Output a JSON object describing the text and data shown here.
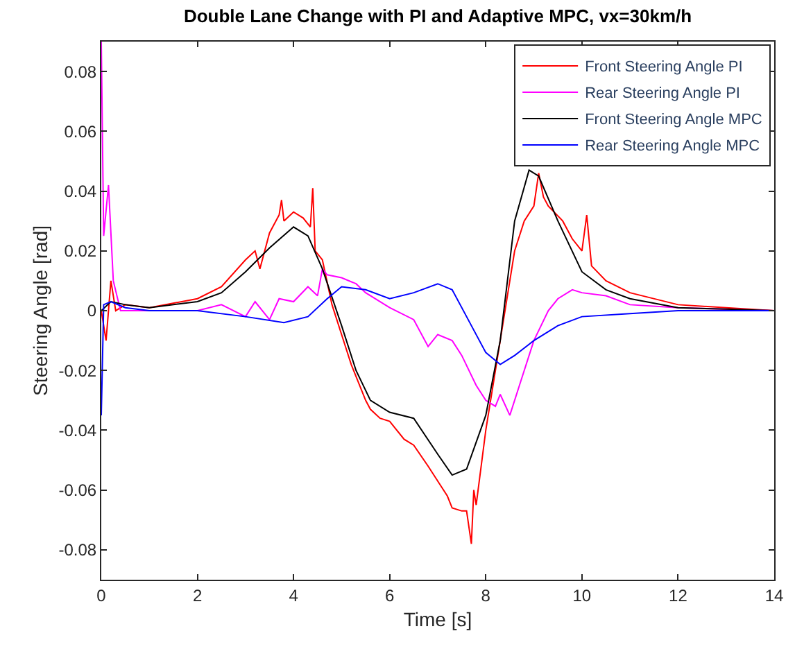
{
  "chart_data": {
    "type": "line",
    "title": "Double Lane Change with PI and Adaptive MPC, vx=30km/h",
    "xlabel": "Time [s]",
    "ylabel": "Steering Angle [rad]",
    "xlim": [
      0,
      14
    ],
    "ylim": [
      -0.09,
      0.09
    ],
    "xticks": [
      0,
      2,
      4,
      6,
      8,
      10,
      12,
      14
    ],
    "yticks": [
      -0.08,
      -0.06,
      -0.04,
      -0.02,
      0,
      0.02,
      0.04,
      0.06,
      0.08
    ],
    "grid": false,
    "legend": "top right",
    "line_style": "solid",
    "marker": "none",
    "series": [
      {
        "name": "Front Steering Angle PI",
        "color": "#ff0000",
        "x": [
          0,
          0.1,
          0.2,
          0.3,
          0.5,
          1,
          2,
          2.5,
          3,
          3.2,
          3.3,
          3.5,
          3.7,
          3.75,
          3.8,
          4,
          4.2,
          4.35,
          4.4,
          4.45,
          4.6,
          4.8,
          5,
          5.2,
          5.3,
          5.5,
          5.6,
          5.8,
          6,
          6.3,
          6.5,
          6.8,
          7,
          7.2,
          7.3,
          7.5,
          7.6,
          7.7,
          7.75,
          7.8,
          8,
          8.2,
          8.3,
          8.5,
          8.6,
          8.8,
          9,
          9.1,
          9.2,
          9.3,
          9.6,
          9.8,
          10,
          10.1,
          10.2,
          10.5,
          11,
          12,
          13,
          14
        ],
        "values": [
          0,
          -0.01,
          0.01,
          0,
          0.002,
          0.001,
          0.004,
          0.008,
          0.017,
          0.02,
          0.014,
          0.026,
          0.032,
          0.037,
          0.03,
          0.033,
          0.031,
          0.028,
          0.041,
          0.02,
          0.017,
          0.002,
          -0.008,
          -0.018,
          -0.022,
          -0.03,
          -0.033,
          -0.036,
          -0.037,
          -0.043,
          -0.045,
          -0.052,
          -0.057,
          -0.062,
          -0.066,
          -0.067,
          -0.067,
          -0.078,
          -0.06,
          -0.065,
          -0.04,
          -0.02,
          -0.01,
          0.01,
          0.02,
          0.03,
          0.035,
          0.046,
          0.038,
          0.035,
          0.03,
          0.024,
          0.02,
          0.032,
          0.015,
          0.01,
          0.006,
          0.002,
          0.001,
          0
        ]
      },
      {
        "name": "Rear Steering Angle PI",
        "color": "#ff00ff",
        "x": [
          0,
          0.05,
          0.15,
          0.25,
          0.4,
          1,
          2,
          2.5,
          3,
          3.2,
          3.5,
          3.7,
          4,
          4.3,
          4.5,
          4.6,
          4.7,
          5,
          5.3,
          5.5,
          6,
          6.5,
          6.8,
          7,
          7.3,
          7.5,
          7.8,
          8,
          8.2,
          8.3,
          8.5,
          8.7,
          9,
          9.3,
          9.5,
          9.8,
          10,
          10.5,
          11,
          12,
          14
        ],
        "values": [
          0.09,
          0.025,
          0.042,
          0.01,
          0,
          0,
          0,
          0.002,
          -0.002,
          0.003,
          -0.003,
          0.004,
          0.003,
          0.008,
          0.005,
          0.014,
          0.012,
          0.011,
          0.009,
          0.006,
          0.001,
          -0.003,
          -0.012,
          -0.008,
          -0.01,
          -0.015,
          -0.025,
          -0.03,
          -0.032,
          -0.028,
          -0.035,
          -0.025,
          -0.01,
          0.0,
          0.004,
          0.007,
          0.006,
          0.005,
          0.002,
          0.001,
          0
        ]
      },
      {
        "name": "Front Steering Angle MPC",
        "color": "#000000",
        "x": [
          0,
          0.2,
          0.5,
          1,
          2,
          2.5,
          3,
          3.5,
          4,
          4.3,
          4.6,
          5,
          5.3,
          5.6,
          6,
          6.5,
          7,
          7.3,
          7.6,
          8,
          8.3,
          8.6,
          8.9,
          9.1,
          9.5,
          10,
          10.5,
          11,
          12,
          13,
          14
        ],
        "values": [
          0,
          0.003,
          0.002,
          0.001,
          0.003,
          0.006,
          0.013,
          0.021,
          0.028,
          0.025,
          0.014,
          -0.005,
          -0.02,
          -0.03,
          -0.034,
          -0.036,
          -0.048,
          -0.055,
          -0.053,
          -0.035,
          -0.01,
          0.03,
          0.047,
          0.045,
          0.03,
          0.013,
          0.007,
          0.004,
          0.001,
          0.0005,
          0
        ]
      },
      {
        "name": "Rear Steering Angle MPC",
        "color": "#0000ff",
        "x": [
          0,
          0.05,
          0.2,
          0.5,
          1,
          2,
          3,
          3.8,
          4.3,
          4.7,
          5,
          5.5,
          6,
          6.5,
          7,
          7.3,
          7.6,
          8,
          8.3,
          8.6,
          9,
          9.5,
          10,
          11,
          12,
          14
        ],
        "values": [
          -0.035,
          0.002,
          0.003,
          0.001,
          0,
          0,
          -0.002,
          -0.004,
          -0.002,
          0.004,
          0.008,
          0.007,
          0.004,
          0.006,
          0.009,
          0.007,
          -0.002,
          -0.014,
          -0.018,
          -0.015,
          -0.01,
          -0.005,
          -0.002,
          -0.001,
          0,
          0
        ]
      }
    ]
  }
}
